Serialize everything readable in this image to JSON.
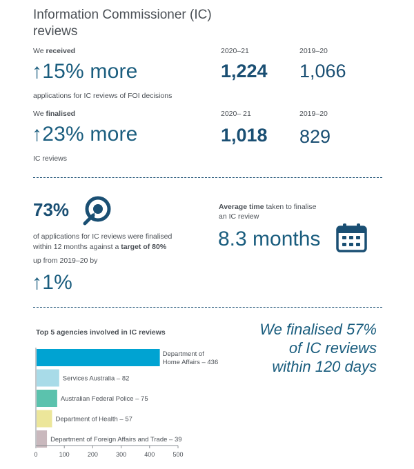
{
  "title": "Information Commissioner (IC) reviews",
  "received": {
    "label_prefix": "We ",
    "label_bold": "received",
    "change": "↑15% more",
    "desc": "applications for IC reviews of FOI decisions",
    "year1": "2020–21",
    "value1": "1,224",
    "year2": "2019–20",
    "value2": "1,066"
  },
  "finalised": {
    "label_prefix": "We ",
    "label_bold": "finalised",
    "change": "↑23% more",
    "desc": "IC reviews",
    "year1": "2020– 21",
    "value1": "1,018",
    "year2": "2019–20",
    "value2": "829"
  },
  "timeliness": {
    "pct": "73%",
    "desc_line1": "of applications for IC reviews were finalised",
    "desc_line2_prefix": "within 12 months against a ",
    "desc_line2_bold": "target of 80%",
    "up_from": "up from 2019–20 by",
    "change": "↑1%"
  },
  "average": {
    "label_bold": "Average time",
    "label_rest": " taken to finalise",
    "label_line2": "an IC review",
    "value": "8.3 months"
  },
  "quote": {
    "line1": "We finalised 57%",
    "line2": "of IC reviews",
    "line3": "within 120 days"
  },
  "chart_data": {
    "type": "bar",
    "orientation": "horizontal",
    "title": "Top 5 agencies involved in IC reviews",
    "categories": [
      "Department of Home Affairs",
      "Services Australia",
      "Australian Federal Police",
      "Department of Health",
      "Department of Foreign Affairs and Trade"
    ],
    "labels": [
      "Department of Home Affairs – 436",
      "Services Australia – 82",
      "Australian Federal Police – 75",
      "Department of Health – 57",
      "Department of Foreign Affairs and Trade – 39"
    ],
    "values": [
      436,
      82,
      75,
      57,
      39
    ],
    "colors": [
      "#00a3d2",
      "#a8dbe8",
      "#5bc2ad",
      "#ece69a",
      "#c9b8bd"
    ],
    "xlim": [
      0,
      500
    ],
    "xticks": [
      "0",
      "100",
      "200",
      "300",
      "400",
      "500"
    ]
  },
  "colors": {
    "accent": "#1a4f73",
    "divider": "#1a4f73"
  }
}
